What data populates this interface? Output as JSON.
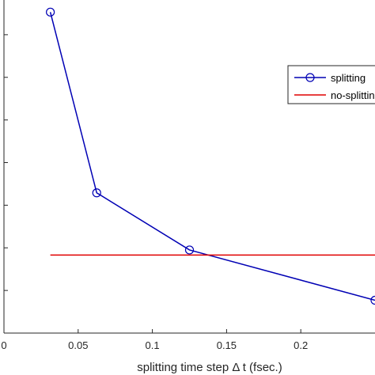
{
  "chart_data": {
    "type": "line",
    "title": "",
    "xlabel": "splitting time step Δ t (fsec.)",
    "ylabel": "",
    "xlim": [
      0,
      0.25
    ],
    "ylim": [
      0,
      8
    ],
    "xticks": [
      0,
      0.05,
      0.1,
      0.15,
      0.2
    ],
    "xtick_labels": [
      "0",
      "0.05",
      "0.1",
      "0.15",
      "0.2"
    ],
    "yticks": [
      1,
      2,
      3,
      4,
      5,
      6,
      7
    ],
    "grid": false,
    "legend_position": "top-right",
    "series": [
      {
        "name": "splitting",
        "color": "#0000b4",
        "marker": "circle",
        "x": [
          0.03125,
          0.0625,
          0.125,
          0.25
        ],
        "y": [
          7.53,
          3.29,
          1.95,
          0.77
        ]
      },
      {
        "name": "no-splitting",
        "color": "#e00000",
        "marker": "none",
        "x": [
          0.03125,
          0.25
        ],
        "y": [
          1.83,
          1.83
        ]
      }
    ]
  }
}
